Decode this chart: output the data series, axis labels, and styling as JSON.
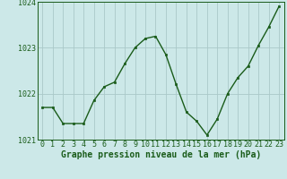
{
  "x": [
    0,
    1,
    2,
    3,
    4,
    5,
    6,
    7,
    8,
    9,
    10,
    11,
    12,
    13,
    14,
    15,
    16,
    17,
    18,
    19,
    20,
    21,
    22,
    23
  ],
  "y": [
    1021.7,
    1021.7,
    1021.35,
    1021.35,
    1021.35,
    1021.85,
    1022.15,
    1022.25,
    1022.65,
    1023.0,
    1023.2,
    1023.25,
    1022.85,
    1022.2,
    1021.6,
    1021.4,
    1021.1,
    1021.45,
    1022.0,
    1022.35,
    1022.6,
    1023.05,
    1023.45,
    1023.9
  ],
  "line_color": "#1a5c1a",
  "marker_color": "#1a5c1a",
  "bg_color": "#cce8e8",
  "grid_color": "#aac8c8",
  "axis_color": "#1a5c1a",
  "label_color": "#1a5c1a",
  "xlabel": "Graphe pression niveau de la mer (hPa)",
  "ylim": [
    1021.0,
    1024.0
  ],
  "ytick_labels": [
    "1021",
    "1022",
    "1023",
    "1024"
  ],
  "yticks": [
    1021,
    1022,
    1023,
    1024
  ],
  "xticks": [
    0,
    1,
    2,
    3,
    4,
    5,
    6,
    7,
    8,
    9,
    10,
    11,
    12,
    13,
    14,
    15,
    16,
    17,
    18,
    19,
    20,
    21,
    22,
    23
  ],
  "xlabel_fontsize": 7.0,
  "tick_fontsize": 6.0,
  "line_width": 1.0,
  "marker_size": 2.0
}
